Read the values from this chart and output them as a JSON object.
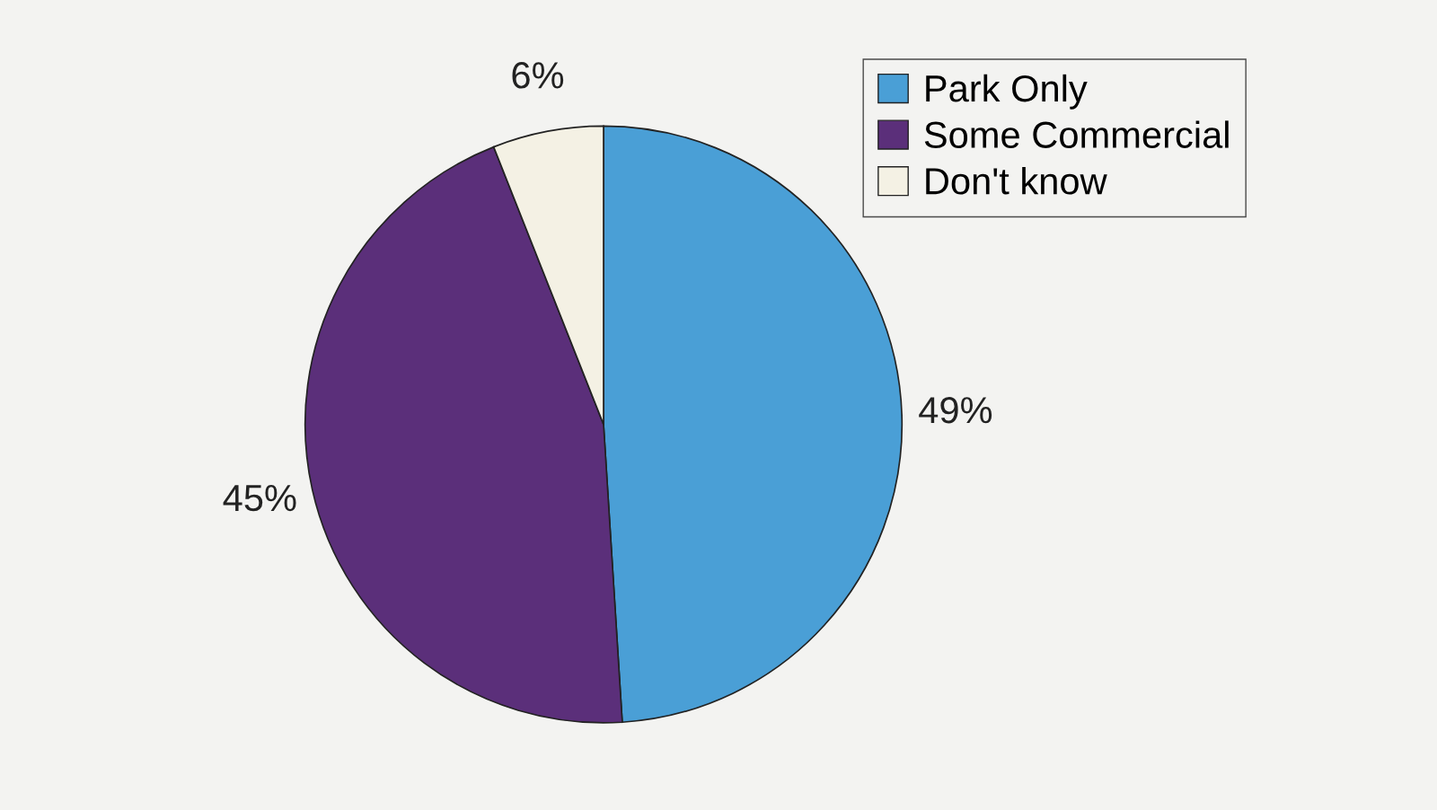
{
  "chart_data": {
    "type": "pie",
    "categories": [
      "Park Only",
      "Some Commercial",
      "Don't know"
    ],
    "values": [
      49,
      45,
      6
    ],
    "colors": [
      "#4a9fd6",
      "#5b2f7a",
      "#f4f1e4"
    ],
    "value_labels": [
      "49%",
      "45%",
      "6%"
    ],
    "legend": "top right"
  }
}
